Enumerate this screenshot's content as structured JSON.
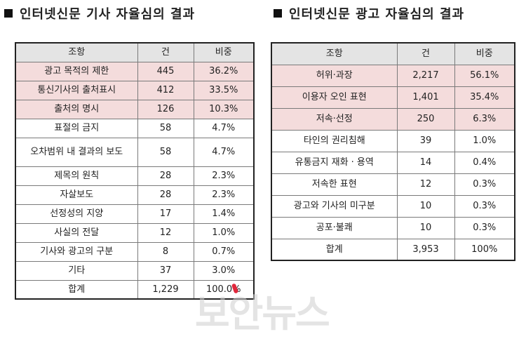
{
  "left": {
    "title": "인터넷신문 기사 자율심의 결과",
    "headers": [
      "조항",
      "건",
      "비중"
    ],
    "rows": [
      {
        "label": "광고 목적의 제한",
        "count": "445",
        "share": "36.2%",
        "highlight": true
      },
      {
        "label": "통신기사의 출처표시",
        "count": "412",
        "share": "33.5%",
        "highlight": true
      },
      {
        "label": "출처의 명시",
        "count": "126",
        "share": "10.3%",
        "highlight": true
      },
      {
        "label": "표절의 금지",
        "count": "58",
        "share": "4.7%",
        "highlight": false
      },
      {
        "label": "오차범위 내 결과의 보도",
        "count": "58",
        "share": "4.7%",
        "highlight": false
      },
      {
        "label": "제목의 원칙",
        "count": "28",
        "share": "2.3%",
        "highlight": false
      },
      {
        "label": "자살보도",
        "count": "28",
        "share": "2.3%",
        "highlight": false
      },
      {
        "label": "선정성의 지양",
        "count": "17",
        "share": "1.4%",
        "highlight": false
      },
      {
        "label": "사실의 전달",
        "count": "12",
        "share": "1.0%",
        "highlight": false
      },
      {
        "label": "기사와 광고의 구분",
        "count": "8",
        "share": "0.7%",
        "highlight": false
      },
      {
        "label": "기타",
        "count": "37",
        "share": "3.0%",
        "highlight": false
      },
      {
        "label": "합계",
        "count": "1,229",
        "share": "100.0%",
        "highlight": false
      }
    ]
  },
  "right": {
    "title": "인터넷신문 광고 자율심의 결과",
    "headers": [
      "조항",
      "건",
      "비중"
    ],
    "rows": [
      {
        "label": "허위·과장",
        "count": "2,217",
        "share": "56.1%",
        "highlight": true
      },
      {
        "label": "이용자 오인 표현",
        "count": "1,401",
        "share": "35.4%",
        "highlight": true
      },
      {
        "label": "저속·선정",
        "count": "250",
        "share": "6.3%",
        "highlight": true
      },
      {
        "label": "타인의 권리침해",
        "count": "39",
        "share": "1.0%",
        "highlight": false
      },
      {
        "label": "유통금지 재화 · 용역",
        "count": "14",
        "share": "0.4%",
        "highlight": false
      },
      {
        "label": "저속한 표현",
        "count": "12",
        "share": "0.3%",
        "highlight": false
      },
      {
        "label": "광고와 기사의 미구분",
        "count": "10",
        "share": "0.3%",
        "highlight": false
      },
      {
        "label": "공포·불쾌",
        "count": "10",
        "share": "0.3%",
        "highlight": false
      },
      {
        "label": "합계",
        "count": "3,953",
        "share": "100%",
        "highlight": false
      }
    ]
  },
  "watermark": "보안뉴스",
  "colors": {
    "highlight": "#f4dcdc",
    "header": "#e4e4e4",
    "watermark_mark": "#e0283c"
  }
}
